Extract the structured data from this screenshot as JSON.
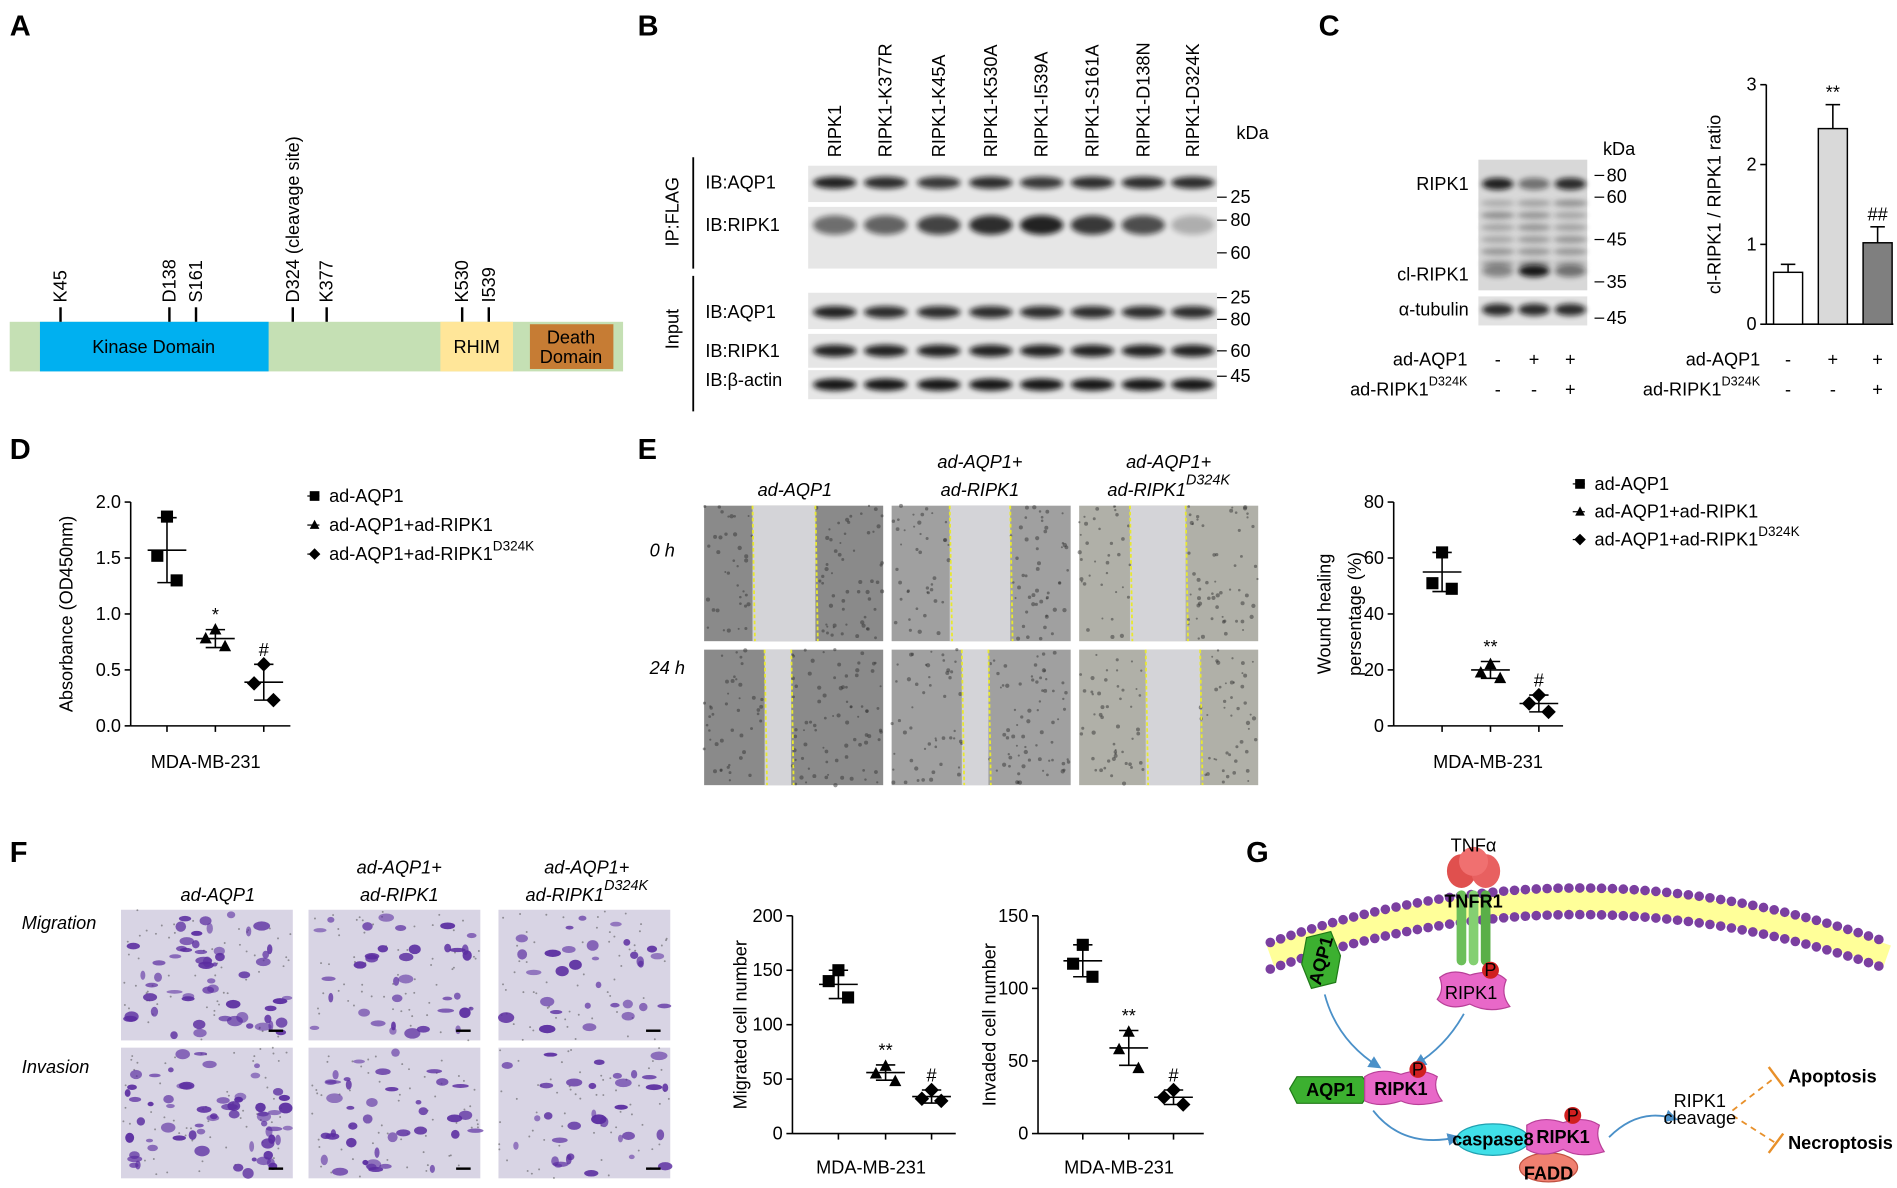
{
  "letters": [
    "A",
    "B",
    "C",
    "D",
    "E",
    "F",
    "G"
  ],
  "domain_map": {
    "sites": [
      "K45",
      "D138",
      "S161",
      "D324 (cleavage site)",
      "K377",
      "K530",
      "I539"
    ],
    "kinase": "Kinase Domain",
    "rhim": "RHIM",
    "death": [
      "Death",
      "Domain"
    ]
  },
  "blot_b": {
    "lanes": [
      "RIPK1",
      "RIPK1-K377R",
      "RIPK1-K45A",
      "RIPK1-K530A",
      "RIPK1-I539A",
      "RIPK1-S161A",
      "RIPK1-D138N",
      "RIPK1-D324K"
    ],
    "unit": "kDa",
    "groups": [
      "IP:FLAG",
      "Input"
    ],
    "rows": [
      "IB:AQP1",
      "IB:RIPK1",
      "IB:AQP1",
      "IB:RIPK1",
      "IB:β-actin"
    ],
    "markers": [
      25,
      80,
      60,
      25,
      80,
      60,
      45
    ]
  },
  "blot_c": {
    "rows": [
      "RIPK1",
      "cl-RIPK1",
      "α-tubulin"
    ],
    "unit": "kDa",
    "markers": [
      80,
      60,
      45,
      35,
      45
    ],
    "conditions": [
      {
        "label": "ad-AQP1",
        "signs": [
          "-",
          "+",
          "+"
        ]
      },
      {
        "label": "ad-RIPK1",
        "sup": "D324K",
        "signs": [
          "-",
          "-",
          "+"
        ]
      }
    ]
  },
  "wound_images": {
    "headers": [
      {
        "line1": "ad-AQP1"
      },
      {
        "line1": "ad-AQP1+",
        "line2": "ad-RIPK1"
      },
      {
        "line1": "ad-AQP1+",
        "line2": "ad-RIPK1",
        "sup": "D324K"
      }
    ],
    "rows": [
      "0 h",
      "24 h"
    ]
  },
  "transwell_images": {
    "headers": [
      {
        "line1": "ad-AQP1"
      },
      {
        "line1": "ad-AQP1+",
        "line2": "ad-RIPK1"
      },
      {
        "line1": "ad-AQP1+",
        "line2": "ad-RIPK1",
        "sup": "D324K"
      }
    ],
    "rows": [
      "Migration",
      "Invasion"
    ]
  },
  "pathway": {
    "tnf": "TNFα",
    "tnfr": "TNFR1",
    "membrane_aqp1": "AQP1",
    "membrane_ripk1": "RIPK1",
    "complex_aqp1": "AQP1",
    "complex_ripk1": "RIPK1",
    "caspase": "caspase8",
    "complex2_ripk1": "RIPK1",
    "fadd": "FADD",
    "phospho": [
      "P",
      "P",
      "P"
    ],
    "cleavage": [
      "RIPK1",
      "cleavage"
    ],
    "outcomes": [
      "Apoptosis",
      "Necroptosis"
    ]
  },
  "chart_data": [
    {
      "type": "bar",
      "categories": [
        null,
        null,
        null
      ],
      "values": [
        0.65,
        2.45,
        1.02
      ],
      "errors": [
        0.1,
        0.3,
        0.2
      ],
      "colors": [
        "#ffffff",
        "#d9d9d9",
        "#7f7f7f"
      ],
      "annotations": [
        null,
        "**",
        "##"
      ],
      "ylabel": "cl-RIPK1 / RIPK1 ratio",
      "ylim": [
        0,
        3
      ],
      "yticks": [
        0,
        1,
        2,
        3
      ],
      "conditions": [
        {
          "label": "ad-AQP1",
          "signs": [
            "-",
            "+",
            "+"
          ]
        },
        {
          "label": "ad-RIPK1",
          "sup": "D324K",
          "signs": [
            "-",
            "-",
            "+"
          ]
        }
      ]
    },
    {
      "type": "dot",
      "ylabel": "Absorbance (OD450nm)",
      "xlabel": "MDA-MB-231",
      "ylim": [
        0,
        2
      ],
      "yticks": [
        {
          "value": 0,
          "label": "0.0"
        },
        0.5,
        {
          "value": 1,
          "label": "1.0"
        },
        1.5,
        {
          "value": 2,
          "label": "2.0"
        }
      ],
      "legend": true,
      "series": [
        {
          "name": "ad-AQP1",
          "marker": "square",
          "color": "#000000",
          "values": [
            1.87,
            1.52,
            1.3
          ],
          "mean": 1.57,
          "sd": 0.29
        },
        {
          "name": "ad-AQP1+ad-RIPK1",
          "marker": "triangle",
          "color": "#000000",
          "values": [
            0.86,
            0.78,
            0.71
          ],
          "mean": 0.78,
          "sd": 0.08,
          "annotation": "*"
        },
        {
          "name": "ad-AQP1+ad-RIPK1",
          "name_sup": "D324K",
          "marker": "diamond",
          "color": "#000000",
          "values": [
            0.55,
            0.38,
            0.23
          ],
          "mean": 0.39,
          "sd": 0.16,
          "annotation": "#"
        }
      ]
    },
    {
      "type": "dot",
      "ylabel": [
        "Wound healing",
        "persentage (%)"
      ],
      "xlabel": "MDA-MB-231",
      "ylim": [
        0,
        80
      ],
      "yticks": [
        0,
        20,
        40,
        60,
        80
      ],
      "legend": true,
      "series": [
        {
          "name": "ad-AQP1",
          "marker": "square",
          "color": "#000000",
          "values": [
            62,
            51,
            49
          ],
          "mean": 55,
          "sd": 7
        },
        {
          "name": "ad-AQP1+ad-RIPK1",
          "marker": "triangle",
          "color": "#000000",
          "values": [
            22,
            19,
            17
          ],
          "mean": 20,
          "sd": 3,
          "annotation": "**"
        },
        {
          "name": "ad-AQP1+ad-RIPK1",
          "name_sup": "D324K",
          "marker": "diamond",
          "color": "#000000",
          "values": [
            11,
            8,
            5
          ],
          "mean": 8,
          "sd": 3,
          "annotation": "#"
        }
      ]
    },
    {
      "type": "dot",
      "ylabel": "Migrated cell number",
      "xlabel": "MDA-MB-231",
      "ylim": [
        0,
        200
      ],
      "yticks": [
        0,
        50,
        100,
        150,
        200
      ],
      "legend": false,
      "series": [
        {
          "marker": "square",
          "color": "#000000",
          "values": [
            150,
            140,
            125
          ],
          "mean": 137,
          "sd": 13
        },
        {
          "marker": "triangle",
          "color": "#000000",
          "values": [
            62,
            55,
            48
          ],
          "mean": 56,
          "sd": 7,
          "annotation": "**"
        },
        {
          "marker": "diamond",
          "color": "#000000",
          "values": [
            40,
            32,
            30
          ],
          "mean": 34,
          "sd": 6,
          "annotation": "#"
        }
      ]
    },
    {
      "type": "dot",
      "ylabel": "Invaded cell number",
      "xlabel": "MDA-MB-231",
      "ylim": [
        0,
        150
      ],
      "yticks": [
        0,
        50,
        100,
        150
      ],
      "legend": false,
      "series": [
        {
          "marker": "square",
          "color": "#000000",
          "values": [
            130,
            117,
            108
          ],
          "mean": 119,
          "sd": 11
        },
        {
          "marker": "triangle",
          "color": "#000000",
          "values": [
            70,
            58,
            45
          ],
          "mean": 59,
          "sd": 12,
          "annotation": "**"
        },
        {
          "marker": "diamond",
          "color": "#000000",
          "values": [
            30,
            25,
            20
          ],
          "mean": 25,
          "sd": 5,
          "annotation": "#"
        }
      ]
    }
  ]
}
